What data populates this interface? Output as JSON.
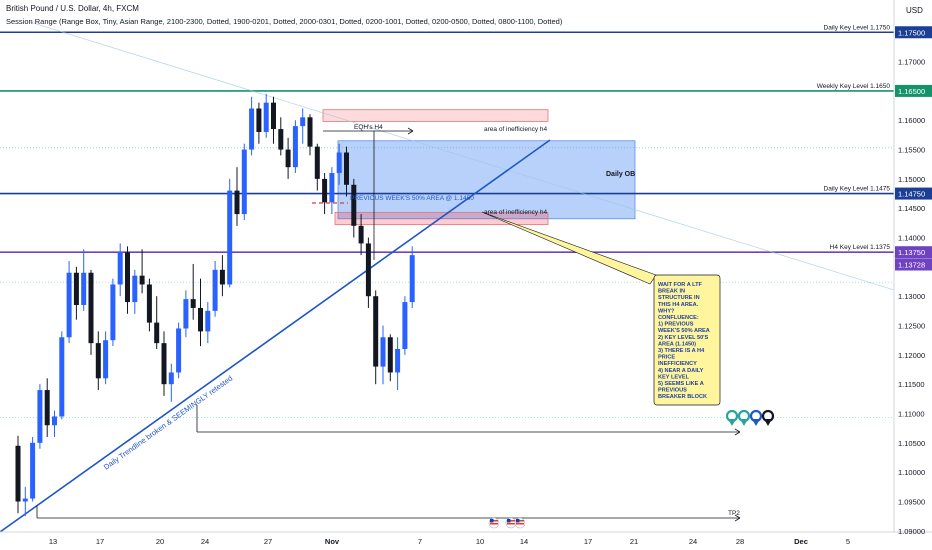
{
  "header": {
    "title": "British Pound / U.S. Dollar, 4h, FXCM",
    "session_range": "Session Range (Range Box, Tiny, Asian Range, 2100-2300, Dotted, 1900-0201, Dotted, 2000-0301, Dotted, 0200-1001, Dotted, 0200-0500, Dotted, 0800-1100, Dotted)"
  },
  "chart_data": {
    "type": "candlestick",
    "symbol": "British Pound / U.S. Dollar",
    "interval": "4h",
    "currency": "USD",
    "ylim": [
      1.0898,
      1.1805
    ],
    "y_ticks": [
      1.09,
      1.095,
      1.1,
      1.105,
      1.11,
      1.115,
      1.12,
      1.125,
      1.13,
      1.135,
      1.14,
      1.145,
      1.15,
      1.155,
      1.16,
      1.165,
      1.17,
      1.175
    ],
    "y_tick_labels": [
      "1.09000",
      "1.09500",
      "1.10000",
      "1.10500",
      "1.11000",
      "1.11500",
      "1.12000",
      "1.12500",
      "1.13000",
      "1.13500",
      "1.14000",
      "1.14500",
      "1.15000",
      "1.15500",
      "1.16000",
      "1.16500",
      "1.17000",
      "1.17500"
    ],
    "x_tick_labels": [
      "13",
      "17",
      "20",
      "24",
      "27",
      "Nov",
      "7",
      "10",
      "14",
      "17",
      "21",
      "24",
      "28",
      "Dec",
      "5"
    ],
    "price_labels": [
      {
        "text": "1.17500",
        "value": 1.175,
        "color": "#1c3f95"
      },
      {
        "text": "1.16500",
        "value": 1.165,
        "color": "#14936a"
      },
      {
        "text": "1.14750",
        "value": 1.1475,
        "color": "#1c3f95"
      },
      {
        "text": "1.13750",
        "value": 1.1375,
        "color": "#6f42c1"
      },
      {
        "text": "1.13728",
        "value": 1.13728,
        "color": "#6f42c1"
      }
    ],
    "levels": [
      {
        "label": "Daily Key Level 1.1750",
        "value": 1.175,
        "color": "#1c3f95"
      },
      {
        "label": "Weekly Key Level 1.1650",
        "value": 1.165,
        "color": "#14936a"
      },
      {
        "label": "Daily Key Level 1.1475",
        "value": 1.1475,
        "color": "#1c3f95"
      },
      {
        "label": "H4 Key Level 1.1375",
        "value": 1.1375,
        "color": "#6f42c1"
      }
    ],
    "annotations": {
      "trendline": "Daily  Trendline broken & SEEMINGLY retested",
      "eqh": "EQH's H4",
      "inefficiency_top": "area of inefficiency h4",
      "inefficiency_bottom": "area of inefficiency h4",
      "daily_ob": "Daily OB",
      "prev_week": "PREVIOUS WEEK'S 50% AREA @ 1.1450",
      "tp": "TP2",
      "note": [
        "WAIT FOR A LTF",
        "BREAK IN",
        "STRUCTURE IN",
        "THIS H4 AREA.",
        "WHY?",
        "CONFLUENCE:",
        "1) PREVIOUS",
        "WEEK'S 50% AREA",
        "2) KEY LEVEL 50'S",
        "AREA (1.1450)",
        "3) THERE IS A H4",
        "PRICE",
        "INEFFICIENCY",
        "4) NEAR A DAILY",
        "KEY LEVEL",
        "5) SEEMS LIKE A",
        "PREVIOUS",
        "BREAKER BLOCK"
      ]
    },
    "candles": [
      [
        1.1045,
        1.1062,
        1.093,
        1.095
      ],
      [
        1.095,
        1.0975,
        1.0925,
        1.0955
      ],
      [
        1.0955,
        1.106,
        1.095,
        1.105
      ],
      [
        1.105,
        1.115,
        1.104,
        1.114
      ],
      [
        1.114,
        1.116,
        1.106,
        1.108
      ],
      [
        1.108,
        1.1105,
        1.106,
        1.1095
      ],
      [
        1.1095,
        1.124,
        1.109,
        1.123
      ],
      [
        1.123,
        1.136,
        1.122,
        1.134
      ],
      [
        1.134,
        1.135,
        1.126,
        1.1285
      ],
      [
        1.1285,
        1.138,
        1.1275,
        1.134
      ],
      [
        1.134,
        1.1345,
        1.12,
        1.122
      ],
      [
        1.122,
        1.124,
        1.114,
        1.116
      ],
      [
        1.116,
        1.124,
        1.115,
        1.1225
      ],
      [
        1.1225,
        1.133,
        1.1215,
        1.132
      ],
      [
        1.132,
        1.139,
        1.13,
        1.1375
      ],
      [
        1.1375,
        1.1385,
        1.127,
        1.129
      ],
      [
        1.129,
        1.1345,
        1.127,
        1.1335
      ],
      [
        1.1335,
        1.138,
        1.1305,
        1.132
      ],
      [
        1.132,
        1.133,
        1.124,
        1.1255
      ],
      [
        1.1255,
        1.13,
        1.121,
        1.122
      ],
      [
        1.122,
        1.124,
        1.113,
        1.115
      ],
      [
        1.115,
        1.1185,
        1.112,
        1.117
      ],
      [
        1.117,
        1.1255,
        1.116,
        1.1245
      ],
      [
        1.1245,
        1.131,
        1.123,
        1.1295
      ],
      [
        1.1295,
        1.1355,
        1.126,
        1.128
      ],
      [
        1.128,
        1.133,
        1.1215,
        1.124
      ],
      [
        1.124,
        1.129,
        1.122,
        1.1275
      ],
      [
        1.1275,
        1.136,
        1.1265,
        1.1345
      ],
      [
        1.1345,
        1.137,
        1.13,
        1.132
      ],
      [
        1.132,
        1.15,
        1.1315,
        1.148
      ],
      [
        1.148,
        1.152,
        1.142,
        1.144
      ],
      [
        1.144,
        1.156,
        1.143,
        1.155
      ],
      [
        1.155,
        1.164,
        1.154,
        1.162
      ],
      [
        1.162,
        1.163,
        1.156,
        1.158
      ],
      [
        1.158,
        1.1645,
        1.157,
        1.163
      ],
      [
        1.163,
        1.164,
        1.156,
        1.1585
      ],
      [
        1.1585,
        1.1605,
        1.154,
        1.155
      ],
      [
        1.155,
        1.157,
        1.15,
        1.152
      ],
      [
        1.152,
        1.16,
        1.151,
        1.159
      ],
      [
        1.159,
        1.162,
        1.156,
        1.1605
      ],
      [
        1.1605,
        1.161,
        1.154,
        1.1555
      ],
      [
        1.1555,
        1.156,
        1.148,
        1.15
      ],
      [
        1.15,
        1.151,
        1.144,
        1.146
      ],
      [
        1.146,
        1.152,
        1.144,
        1.151
      ],
      [
        1.151,
        1.156,
        1.149,
        1.1545
      ],
      [
        1.1545,
        1.1555,
        1.147,
        1.149
      ],
      [
        1.149,
        1.15,
        1.14,
        1.142
      ],
      [
        1.142,
        1.144,
        1.137,
        1.139
      ],
      [
        1.139,
        1.14,
        1.128,
        1.13
      ],
      [
        1.13,
        1.131,
        1.115,
        1.118
      ],
      [
        1.118,
        1.125,
        1.115,
        1.123
      ],
      [
        1.123,
        1.1235,
        1.1155,
        1.117
      ],
      [
        1.117,
        1.123,
        1.114,
        1.121
      ],
      [
        1.121,
        1.13,
        1.12,
        1.129
      ],
      [
        1.129,
        1.1385,
        1.128,
        1.137
      ]
    ]
  }
}
